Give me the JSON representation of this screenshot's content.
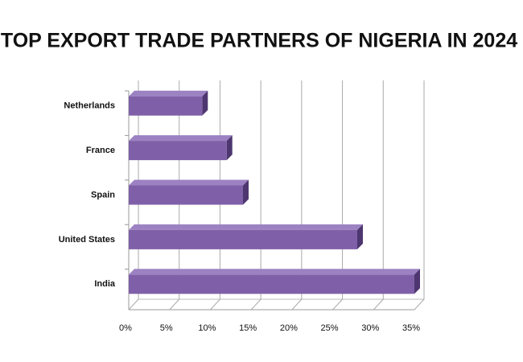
{
  "chart_data": {
    "type": "bar",
    "orientation": "horizontal",
    "title": "TOP EXPORT TRADE PARTNERS OF NIGERIA IN 2024",
    "categories": [
      "Netherlands",
      "France",
      "Spain",
      "United States",
      "India"
    ],
    "values": [
      9,
      12,
      14,
      28,
      35
    ],
    "color": "#7f60a8",
    "xlim": [
      0,
      35
    ],
    "xticks": [
      {
        "value": 0,
        "label": "0%"
      },
      {
        "value": 5,
        "label": "5%"
      },
      {
        "value": 10,
        "label": "10%"
      },
      {
        "value": 15,
        "label": "15%"
      },
      {
        "value": 20,
        "label": "20%"
      },
      {
        "value": 25,
        "label": "25%"
      },
      {
        "value": 30,
        "label": "30%"
      },
      {
        "value": 35,
        "label": "35%"
      }
    ],
    "grid": true
  }
}
